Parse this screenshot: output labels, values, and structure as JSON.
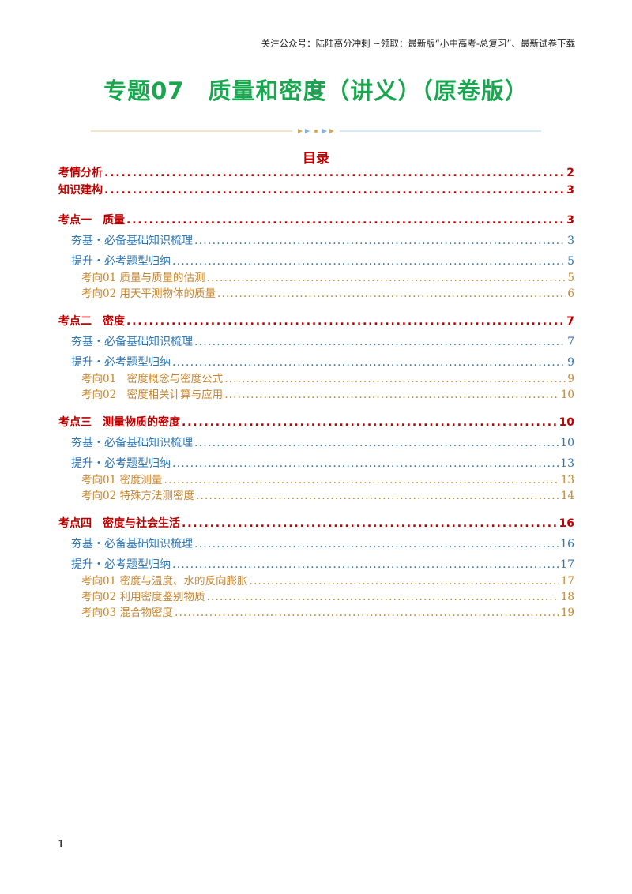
{
  "header_note": "关注公众号：陆陆高分冲刺  ~领取：最新版“小中高考-总复习”、最新试卷下载",
  "title": "专题07　质量和密度（讲义）（原卷版）",
  "toc_heading": "目录",
  "toc": [
    {
      "level": 1,
      "title": "考情分析",
      "page": "2"
    },
    {
      "level": 1,
      "title": "知识建构",
      "page": "3"
    },
    {
      "level": 1,
      "title": "考点一　质量",
      "page": "3"
    },
    {
      "level": 2,
      "title": "夯基・必备基础知识梳理",
      "page": "3"
    },
    {
      "level": 2,
      "title": "提升・必考题型归纳",
      "page": "5"
    },
    {
      "level": 3,
      "title": "考向01  质量与质量的估测",
      "page": "5"
    },
    {
      "level": 3,
      "title": "考向02  用天平测物体的质量",
      "page": "6"
    },
    {
      "level": 1,
      "title": "考点二　密度",
      "page": "7"
    },
    {
      "level": 2,
      "title": "夯基・必备基础知识梳理",
      "page": "7"
    },
    {
      "level": 2,
      "title": "提升・必考题型归纳",
      "page": "9"
    },
    {
      "level": 3,
      "title": "考向01　密度概念与密度公式",
      "page": "9"
    },
    {
      "level": 3,
      "title": "考向02　密度相关计算与应用",
      "page": "10"
    },
    {
      "level": 1,
      "title": "考点三　测量物质的密度",
      "page": "10"
    },
    {
      "level": 2,
      "title": "夯基・必备基础知识梳理",
      "page": "10"
    },
    {
      "level": 2,
      "title": "提升・必考题型归纳",
      "page": "13"
    },
    {
      "level": 3,
      "title": "考向01  密度测量",
      "page": "13"
    },
    {
      "level": 3,
      "title": "考向02  特殊方法测密度",
      "page": "14"
    },
    {
      "level": 1,
      "title": "考点四　密度与社会生活",
      "page": "16"
    },
    {
      "level": 2,
      "title": "夯基・必备基础知识梳理",
      "page": "16"
    },
    {
      "level": 2,
      "title": "提升・必考题型归纳",
      "page": "17"
    },
    {
      "level": 3,
      "title": "考向01  密度与温度、水的反向膨胀",
      "page": "17"
    },
    {
      "level": 3,
      "title": "考向02  利用密度鉴别物质",
      "page": "18"
    },
    {
      "level": 3,
      "title": "考向03  混合物密度",
      "page": "19"
    }
  ],
  "page_number": "1",
  "colors": {
    "title": "#1aa64f",
    "level1": "#c00000",
    "level2": "#2e75b6",
    "level3": "#c9862e"
  }
}
